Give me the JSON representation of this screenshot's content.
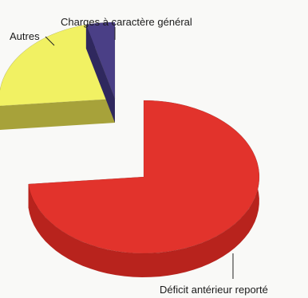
{
  "chart_data": {
    "type": "pie",
    "style": "3d-exploded",
    "slices": [
      {
        "label": "Déficit antérieur reporté",
        "value": 73.5,
        "color": "#e2332c",
        "side_color": "#b8231d",
        "exploded": false
      },
      {
        "label": "Autres",
        "value": 22.5,
        "color": "#f1f163",
        "side_color": "#a7a23a",
        "exploded": true
      },
      {
        "label": "Charges à caractère général",
        "value": 4.0,
        "color": "#4a3f86",
        "side_color": "#2f285e",
        "exploded": true
      }
    ],
    "start_angle_deg": 0
  }
}
